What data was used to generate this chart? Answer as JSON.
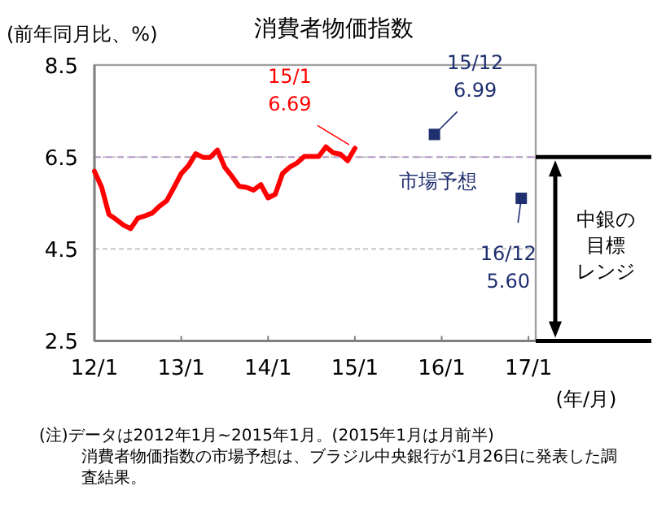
{
  "chart_data": {
    "type": "line",
    "title": "消費者物価指数",
    "ylabel": "(前年同月比、%)",
    "xlabel": "(年/月)",
    "x": [
      "2012-01",
      "2012-02",
      "2012-03",
      "2012-04",
      "2012-05",
      "2012-06",
      "2012-07",
      "2012-08",
      "2012-09",
      "2012-10",
      "2012-11",
      "2012-12",
      "2013-01",
      "2013-02",
      "2013-03",
      "2013-04",
      "2013-05",
      "2013-06",
      "2013-07",
      "2013-08",
      "2013-09",
      "2013-10",
      "2013-11",
      "2013-12",
      "2014-01",
      "2014-02",
      "2014-03",
      "2014-04",
      "2014-05",
      "2014-06",
      "2014-07",
      "2014-08",
      "2014-09",
      "2014-10",
      "2014-11",
      "2014-12",
      "2015-01"
    ],
    "series": [
      {
        "type": "line",
        "color": "#ff0000",
        "marker": "none",
        "values": [
          6.19,
          5.84,
          5.25,
          5.14,
          5.02,
          4.94,
          5.17,
          5.22,
          5.28,
          5.43,
          5.55,
          5.84,
          6.14,
          6.31,
          6.57,
          6.49,
          6.49,
          6.65,
          6.28,
          6.08,
          5.86,
          5.84,
          5.78,
          5.9,
          5.61,
          5.69,
          6.14,
          6.28,
          6.37,
          6.51,
          6.51,
          6.51,
          6.72,
          6.59,
          6.56,
          6.42,
          6.69
        ]
      },
      {
        "type": "scatter",
        "name": "市場予想",
        "color": "#1f2f6f",
        "marker": "square",
        "x": [
          "2015-12",
          "2016-12"
        ],
        "values": [
          6.99,
          5.6
        ]
      }
    ],
    "xlim": [
      "2012-01",
      "2017-02"
    ],
    "ylim": [
      2.5,
      8.5
    ],
    "xticks": [
      {
        "value": "2012-01",
        "label": "12/1"
      },
      {
        "value": "2013-01",
        "label": "13/1"
      },
      {
        "value": "2014-01",
        "label": "14/1"
      },
      {
        "value": "2015-01",
        "label": "15/1"
      },
      {
        "value": "2016-01",
        "label": "16/1"
      },
      {
        "value": "2017-01",
        "label": "17/1"
      }
    ],
    "yticks": [
      2.5,
      4.5,
      6.5,
      8.5
    ],
    "grid": "y",
    "legend": false,
    "ref_lines": [
      {
        "axis": "y",
        "value": 6.5,
        "color": "#b89cc8",
        "line_style": "dashed"
      }
    ],
    "annotations": [
      {
        "text": "15/1 6.69",
        "x": "2015-01",
        "y": 6.69
      },
      {
        "text": "15/12 6.99",
        "x": "2015-12",
        "y": 6.99
      },
      {
        "text": "16/12 5.60",
        "x": "2016-12",
        "y": 5.6
      },
      "中銀の目標レンジ",
      "(注)データは2012年1月~2015年1月。(2015年1月は月前半)",
      "消費者物価指数の市場予想は、ブラジル中央銀行が1月26日に発表した調査結果。"
    ]
  }
}
